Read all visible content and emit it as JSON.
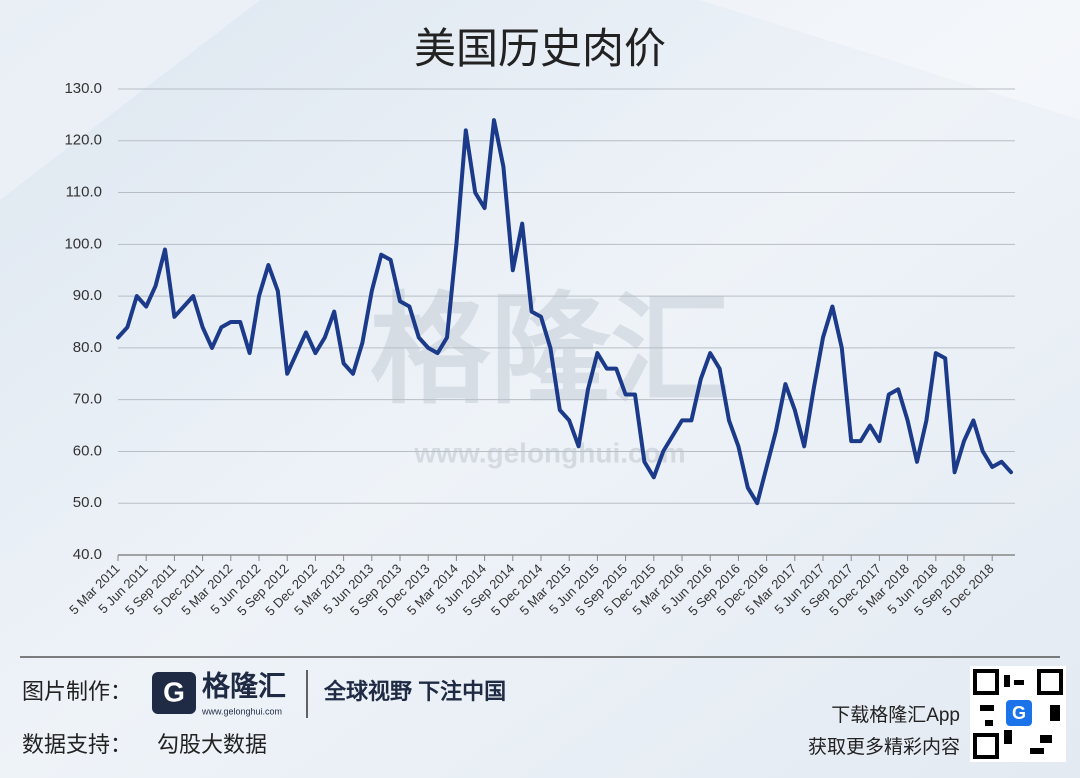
{
  "chart_data": {
    "type": "line",
    "title": "美国历史肉价",
    "categories": [
      "5 Mar 2011",
      null,
      null,
      "5 Jun 2011",
      null,
      null,
      "5 Sep 2011",
      null,
      null,
      "5 Dec 2011",
      null,
      null,
      "5 Mar 2012",
      null,
      null,
      "5 Jun 2012",
      null,
      null,
      "5 Sep 2012",
      null,
      null,
      "5 Dec 2012",
      null,
      null,
      "5 Mar 2013",
      null,
      null,
      "5 Jun 2013",
      null,
      null,
      "5 Sep 2013",
      null,
      null,
      "5 Dec 2013",
      null,
      null,
      "5 Mar 2014",
      null,
      null,
      "5 Jun 2014",
      null,
      null,
      "5 Sep 2014",
      null,
      null,
      "5 Dec 2014",
      null,
      null,
      "5 Mar 2015",
      null,
      null,
      "5 Jun 2015",
      null,
      null,
      "5 Sep 2015",
      null,
      null,
      "5 Dec 2015",
      null,
      null,
      "5 Mar 2016",
      null,
      null,
      "5 Jun 2016",
      null,
      null,
      "5 Sep 2016",
      null,
      null,
      "5 Dec 2016",
      null,
      null,
      "5 Mar 2017",
      null,
      null,
      "5 Jun 2017",
      null,
      null,
      "5 Sep 2017",
      null,
      null,
      "5 Dec 2017",
      null,
      null,
      "5 Mar 2018",
      null,
      null,
      "5 Jun 2018",
      null,
      null,
      "5 Sep 2018",
      null,
      null,
      "5 Dec 2018",
      null,
      null
    ],
    "series": [
      {
        "color": "#1b3a8a",
        "values": [
          82,
          84,
          90,
          88,
          92,
          99,
          86,
          88,
          90,
          84,
          80,
          84,
          85,
          85,
          79,
          90,
          96,
          91,
          75,
          79,
          83,
          79,
          82,
          87,
          77,
          75,
          81,
          91,
          98,
          97,
          89,
          88,
          82,
          80,
          79,
          82,
          100,
          122,
          110,
          107,
          124,
          115,
          95,
          104,
          87,
          86,
          80,
          68,
          66,
          61,
          72,
          79,
          76,
          76,
          71,
          71,
          58,
          55,
          60,
          63,
          66,
          66,
          74,
          79,
          76,
          66,
          61,
          53,
          50,
          57,
          64,
          73,
          68,
          61,
          72,
          82,
          88,
          80,
          62,
          62,
          65,
          62,
          71,
          72,
          66,
          58,
          66,
          79,
          78,
          56,
          62,
          66,
          60,
          57,
          58,
          56
        ]
      }
    ],
    "ylim": [
      40,
      130
    ],
    "yticks": [
      {
        "value": 40,
        "label": "40.0"
      },
      {
        "value": 50,
        "label": "50.0"
      },
      {
        "value": 60,
        "label": "60.0"
      },
      {
        "value": 70,
        "label": "70.0"
      },
      {
        "value": 80,
        "label": "80.0"
      },
      {
        "value": 90,
        "label": "90.0"
      },
      {
        "value": 100,
        "label": "100.0"
      },
      {
        "value": 110,
        "label": "110.0"
      },
      {
        "value": 120,
        "label": "120.0"
      },
      {
        "value": 130,
        "label": "130.0"
      }
    ],
    "grid": true
  },
  "watermark": {
    "logo": "格隆汇",
    "url": "www.gelonghui.com"
  },
  "footer": {
    "made_by_label": "图片制作：",
    "brand": "格隆汇",
    "brand_url": "www.gelonghui.com",
    "slogan": "全球视野 下注中国",
    "data_label": "数据支持：",
    "data_source": "勾股大数据",
    "download": "下载格隆汇App",
    "more": "获取更多精彩内容"
  }
}
